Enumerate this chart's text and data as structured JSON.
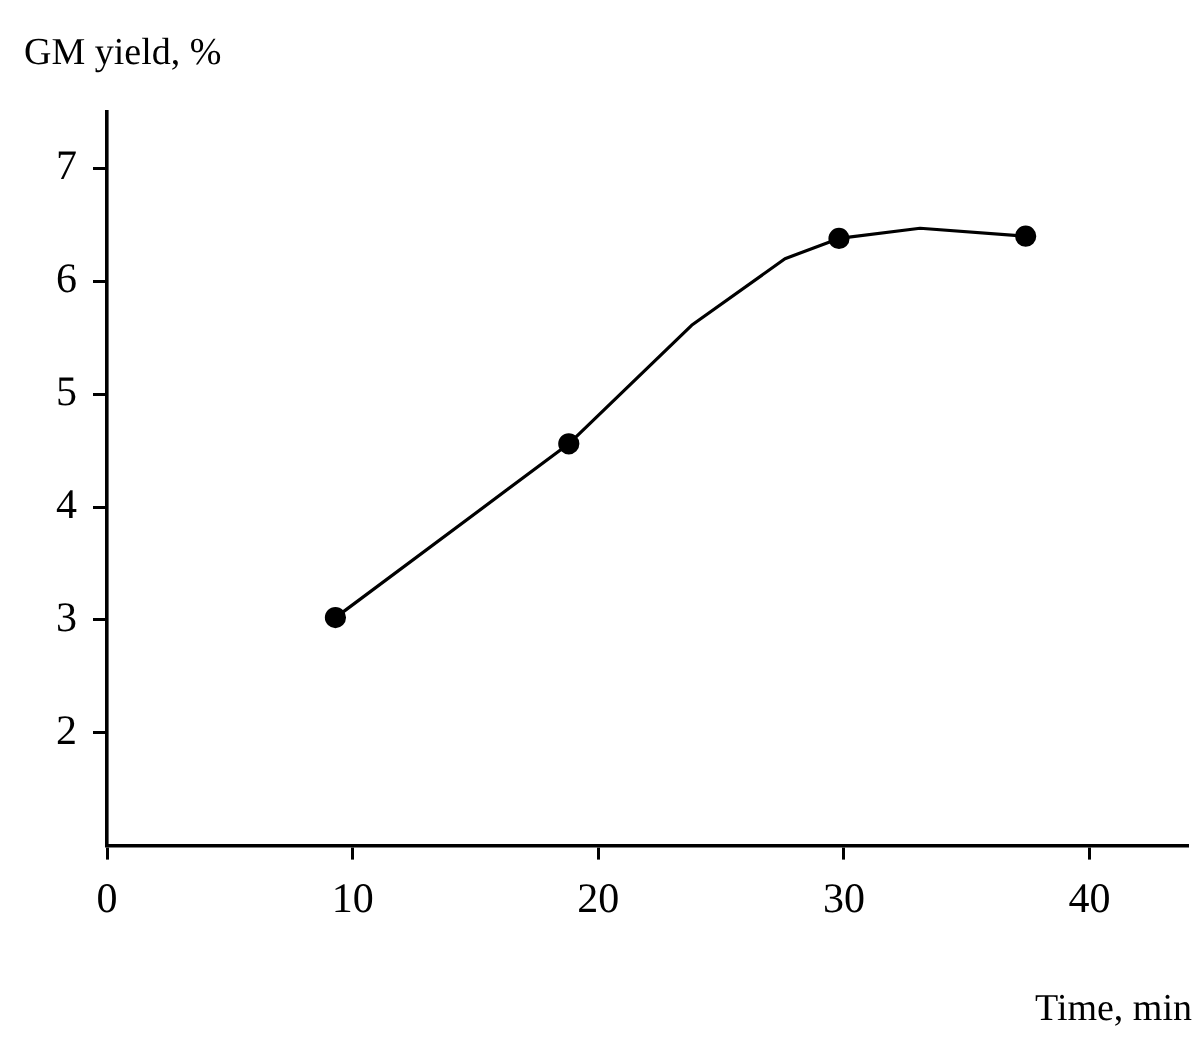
{
  "chart_data": {
    "type": "line",
    "xlabel": "Time, min",
    "ylabel": "GM yield, %",
    "series": [
      {
        "x": [
          9.3,
          18.8,
          23.8,
          27.6,
          29.8,
          33.1,
          37.4
        ],
        "values": [
          3.02,
          4.56,
          5.61,
          6.2,
          6.38,
          6.47,
          6.4
        ],
        "color": "#000000",
        "marker": "none"
      },
      {
        "type": "scatter",
        "x": [
          9.3,
          18.8,
          29.8,
          37.4
        ],
        "values": [
          3.02,
          4.56,
          6.38,
          6.4
        ],
        "color": "#000000",
        "marker": "circle"
      }
    ],
    "xlim": [
      0,
      44
    ],
    "xticks": [
      0,
      10,
      20,
      30,
      40
    ],
    "ylim": [
      1,
      7.5
    ],
    "yticks": [
      2,
      3,
      4,
      5,
      6,
      7
    ],
    "grid": false,
    "legend": false,
    "line_style": "solid"
  }
}
